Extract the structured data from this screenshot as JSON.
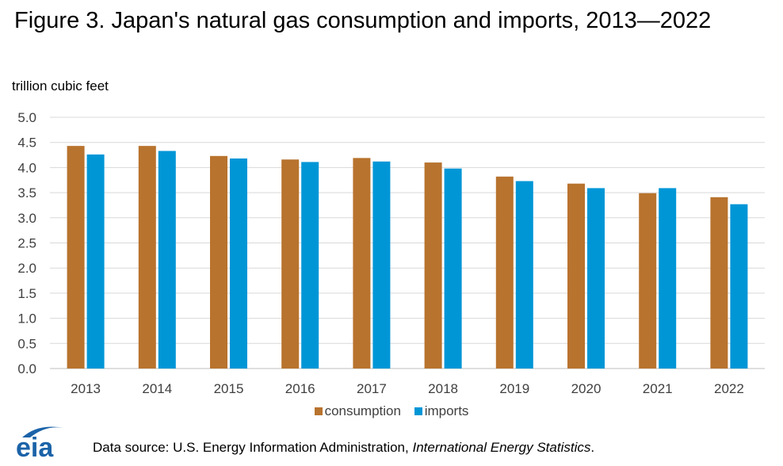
{
  "title": "Figure 3. Japan's natural gas consumption and imports, 2013—2022",
  "chart_data": {
    "type": "bar",
    "title": "Figure 3. Japan's natural gas consumption and imports, 2013—2022",
    "ylabel": "trillion cubic feet",
    "xlabel": "",
    "ylim": [
      0,
      5
    ],
    "yticks": [
      "0.0",
      "0.5",
      "1.0",
      "1.5",
      "2.0",
      "2.5",
      "3.0",
      "3.5",
      "4.0",
      "4.5",
      "5.0"
    ],
    "grid": true,
    "legend_position": "bottom",
    "categories": [
      "2013",
      "2014",
      "2015",
      "2016",
      "2017",
      "2018",
      "2019",
      "2020",
      "2021",
      "2022"
    ],
    "series": [
      {
        "name": "consumption",
        "color": "#b8732e",
        "values": [
          4.43,
          4.43,
          4.23,
          4.16,
          4.19,
          4.1,
          3.82,
          3.68,
          3.49,
          3.41
        ]
      },
      {
        "name": "imports",
        "color": "#0096d6",
        "values": [
          4.26,
          4.33,
          4.18,
          4.11,
          4.12,
          3.98,
          3.73,
          3.59,
          3.59,
          3.27
        ]
      }
    ]
  },
  "legend": {
    "consumption_label": "consumption",
    "imports_label": "imports"
  },
  "footer": {
    "logo_text": "eia",
    "source_prefix": "Data source: U.S. Energy Information Administration, ",
    "source_title": "International Energy Statistics",
    "source_suffix": "."
  },
  "colors": {
    "consumption": "#b8732e",
    "imports": "#0096d6",
    "logo": "#1b63a8"
  }
}
